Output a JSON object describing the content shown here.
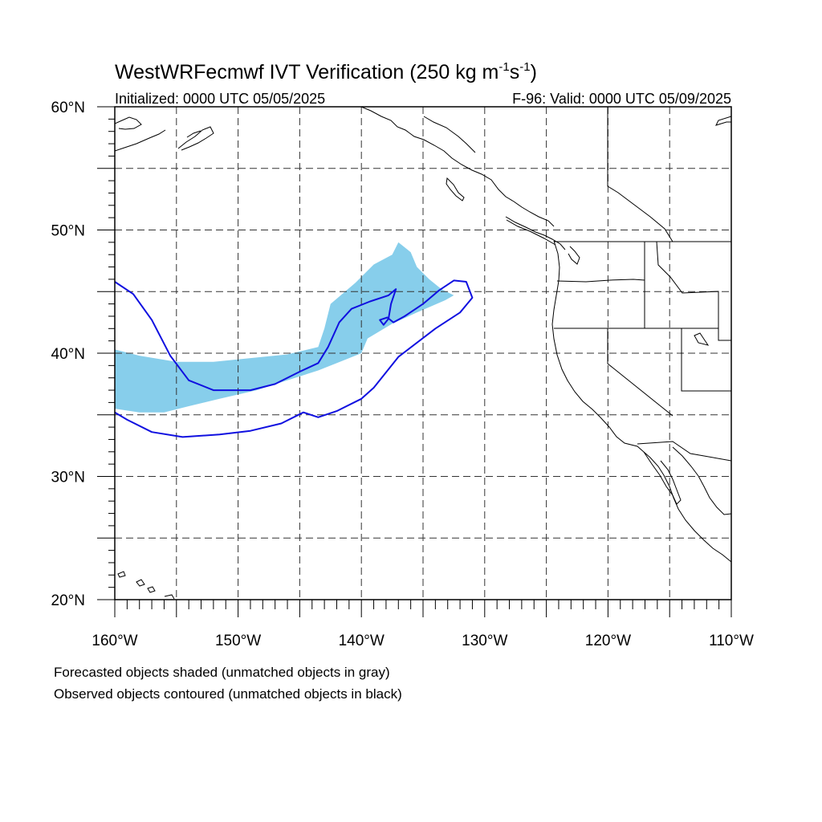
{
  "title": {
    "main": "WestWRFecmwf IVT Verification (250 kg m",
    "sup1": "-1",
    "mid": "s",
    "sup2": "-1",
    "end": ")"
  },
  "subtitle": {
    "initialized": "Initialized: 0000 UTC 05/05/2025",
    "valid": "F-96: Valid: 0000 UTC 05/09/2025"
  },
  "axes": {
    "lon_min": -160,
    "lon_max": -110,
    "lat_min": 20,
    "lat_max": 60,
    "lat_ticks": [
      {
        "value": 60,
        "label": "60°N"
      },
      {
        "value": 50,
        "label": "50°N"
      },
      {
        "value": 40,
        "label": "40°N"
      },
      {
        "value": 30,
        "label": "30°N"
      },
      {
        "value": 20,
        "label": "20°N"
      }
    ],
    "lon_ticks": [
      {
        "value": -160,
        "label": "160°W"
      },
      {
        "value": -150,
        "label": "150°W"
      },
      {
        "value": -140,
        "label": "140°W"
      },
      {
        "value": -130,
        "label": "130°W"
      },
      {
        "value": -120,
        "label": "120°W"
      },
      {
        "value": -110,
        "label": "110°W"
      }
    ]
  },
  "colors": {
    "forecast_fill": "#87ceeb",
    "observed_contour": "#1010e0",
    "coastline": "#000000",
    "grid": "#333333"
  },
  "objects": {
    "forecast": [
      {
        "lon": -160,
        "lat": 40.3
      },
      {
        "lon": -158,
        "lat": 39.8
      },
      {
        "lon": -155,
        "lat": 39.3
      },
      {
        "lon": -152,
        "lat": 39.3
      },
      {
        "lon": -149,
        "lat": 39.6
      },
      {
        "lon": -146,
        "lat": 39.9
      },
      {
        "lon": -143.5,
        "lat": 40.5
      },
      {
        "lon": -143,
        "lat": 42.0
      },
      {
        "lon": -142.5,
        "lat": 44.0
      },
      {
        "lon": -140.5,
        "lat": 45.7
      },
      {
        "lon": -139,
        "lat": 47.2
      },
      {
        "lon": -137.5,
        "lat": 48.0
      },
      {
        "lon": -137,
        "lat": 49.0
      },
      {
        "lon": -136,
        "lat": 48.2
      },
      {
        "lon": -135.5,
        "lat": 47.0
      },
      {
        "lon": -134.5,
        "lat": 46.0
      },
      {
        "lon": -133.5,
        "lat": 45.2
      },
      {
        "lon": -132.5,
        "lat": 44.7
      },
      {
        "lon": -133.2,
        "lat": 44.3
      },
      {
        "lon": -135.5,
        "lat": 43.3
      },
      {
        "lon": -137.5,
        "lat": 42.4
      },
      {
        "lon": -139.5,
        "lat": 41.2
      },
      {
        "lon": -140,
        "lat": 40.0
      },
      {
        "lon": -141.5,
        "lat": 39.4
      },
      {
        "lon": -143.5,
        "lat": 38.6
      },
      {
        "lon": -146,
        "lat": 37.8
      },
      {
        "lon": -148.5,
        "lat": 37.0
      },
      {
        "lon": -151.5,
        "lat": 36.3
      },
      {
        "lon": -154,
        "lat": 35.7
      },
      {
        "lon": -156,
        "lat": 35.2
      },
      {
        "lon": -158,
        "lat": 35.2
      },
      {
        "lon": -160,
        "lat": 35.5
      }
    ],
    "observed_north": [
      {
        "lon": -160,
        "lat": 45.8
      },
      {
        "lon": -158.5,
        "lat": 44.8
      },
      {
        "lon": -157,
        "lat": 42.7
      },
      {
        "lon": -155.5,
        "lat": 39.8
      },
      {
        "lon": -154,
        "lat": 37.8
      },
      {
        "lon": -152,
        "lat": 37.0
      },
      {
        "lon": -149,
        "lat": 37.0
      },
      {
        "lon": -147,
        "lat": 37.5
      },
      {
        "lon": -145,
        "lat": 38.5
      },
      {
        "lon": -143.5,
        "lat": 39.2
      },
      {
        "lon": -142.7,
        "lat": 40.5
      },
      {
        "lon": -141.8,
        "lat": 42.5
      },
      {
        "lon": -140.8,
        "lat": 43.6
      },
      {
        "lon": -139.3,
        "lat": 44.2
      },
      {
        "lon": -137.8,
        "lat": 44.7
      },
      {
        "lon": -137.2,
        "lat": 45.2
      },
      {
        "lon": -137.6,
        "lat": 44.0
      },
      {
        "lon": -137.8,
        "lat": 42.8
      },
      {
        "lon": -138.2,
        "lat": 42.3
      },
      {
        "lon": -138.5,
        "lat": 42.7
      },
      {
        "lon": -137.9,
        "lat": 42.9
      },
      {
        "lon": -137.4,
        "lat": 42.5
      },
      {
        "lon": -136.5,
        "lat": 43.0
      },
      {
        "lon": -135,
        "lat": 44.0
      },
      {
        "lon": -133.7,
        "lat": 45.1
      },
      {
        "lon": -132.5,
        "lat": 45.9
      },
      {
        "lon": -131.5,
        "lat": 45.8
      },
      {
        "lon": -131,
        "lat": 44.5
      },
      {
        "lon": -132,
        "lat": 43.3
      },
      {
        "lon": -134,
        "lat": 42.0
      },
      {
        "lon": -137,
        "lat": 39.7
      },
      {
        "lon": -139,
        "lat": 37.2
      },
      {
        "lon": -140,
        "lat": 36.3
      },
      {
        "lon": -142,
        "lat": 35.3
      },
      {
        "lon": -143.5,
        "lat": 34.8
      },
      {
        "lon": -144.7,
        "lat": 35.2
      },
      {
        "lon": -146.5,
        "lat": 34.3
      },
      {
        "lon": -149,
        "lat": 33.7
      },
      {
        "lon": -151.5,
        "lat": 33.4
      },
      {
        "lon": -154.5,
        "lat": 33.2
      },
      {
        "lon": -157,
        "lat": 33.6
      },
      {
        "lon": -159,
        "lat": 34.6
      },
      {
        "lon": -160,
        "lat": 35.2
      }
    ]
  },
  "footnotes": {
    "line1": "Forecasted objects shaded (unmatched objects in gray)",
    "line2": "Observed objects contoured (unmatched objects in black)"
  }
}
